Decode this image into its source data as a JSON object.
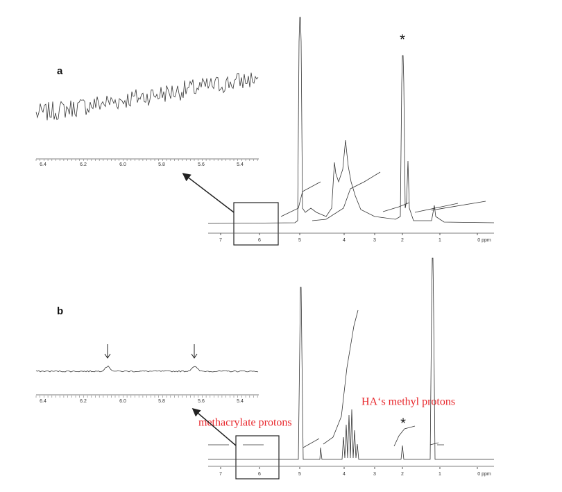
{
  "panels": [
    {
      "label": "a",
      "axis_ticks": [
        "7",
        "6",
        "5",
        "4",
        "3",
        "2",
        "1",
        "0 ppm"
      ],
      "inset_ticks": [
        "6.4",
        "6.2",
        "6.0",
        "5.8",
        "5.6",
        "5.4"
      ],
      "annotations": [
        "*"
      ]
    },
    {
      "label": "b",
      "axis_ticks": [
        "7",
        "6",
        "5",
        "4",
        "3",
        "2",
        "1",
        "0 ppm"
      ],
      "inset_ticks": [
        "6.4",
        "6.2",
        "6.0",
        "5.8",
        "5.6",
        "5.4"
      ],
      "annotations": [
        "*",
        "methacrylate protons",
        "HA‘s methyl protons"
      ]
    }
  ]
}
